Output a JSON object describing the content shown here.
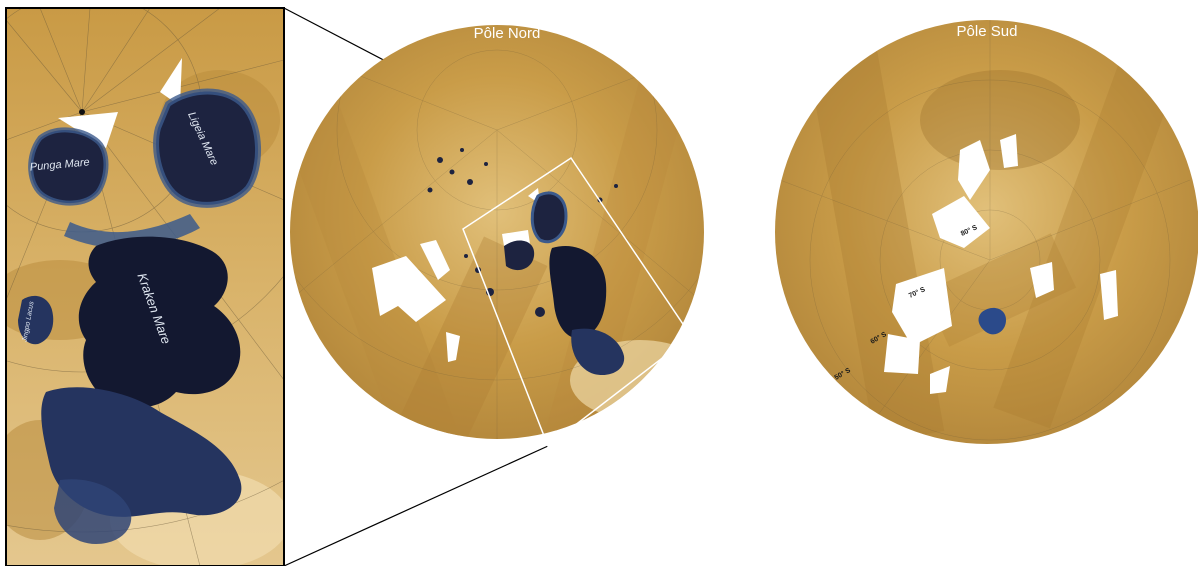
{
  "panels": {
    "north_pole_title": "Pôle Nord",
    "south_pole_title": "Pôle Sud"
  },
  "seas": {
    "punga": "Punga Mare",
    "ligeia": "Ligeia Mare",
    "kraken": "Kraken Mare"
  },
  "lakes": {
    "side_lake": "Jingpo Lacus"
  },
  "latitudes": {
    "l80": "80° S",
    "l70": "70° S",
    "l60": "60° S",
    "l50": "50° S"
  },
  "colors": {
    "terrain": "#c79a45",
    "terrain_light": "#e2c07a",
    "terrain_dark": "#a67a2e",
    "lake_deep": "#14182c",
    "lake_blue": "#3c5a8c",
    "frame": "#000000",
    "box": "#ffffff"
  }
}
